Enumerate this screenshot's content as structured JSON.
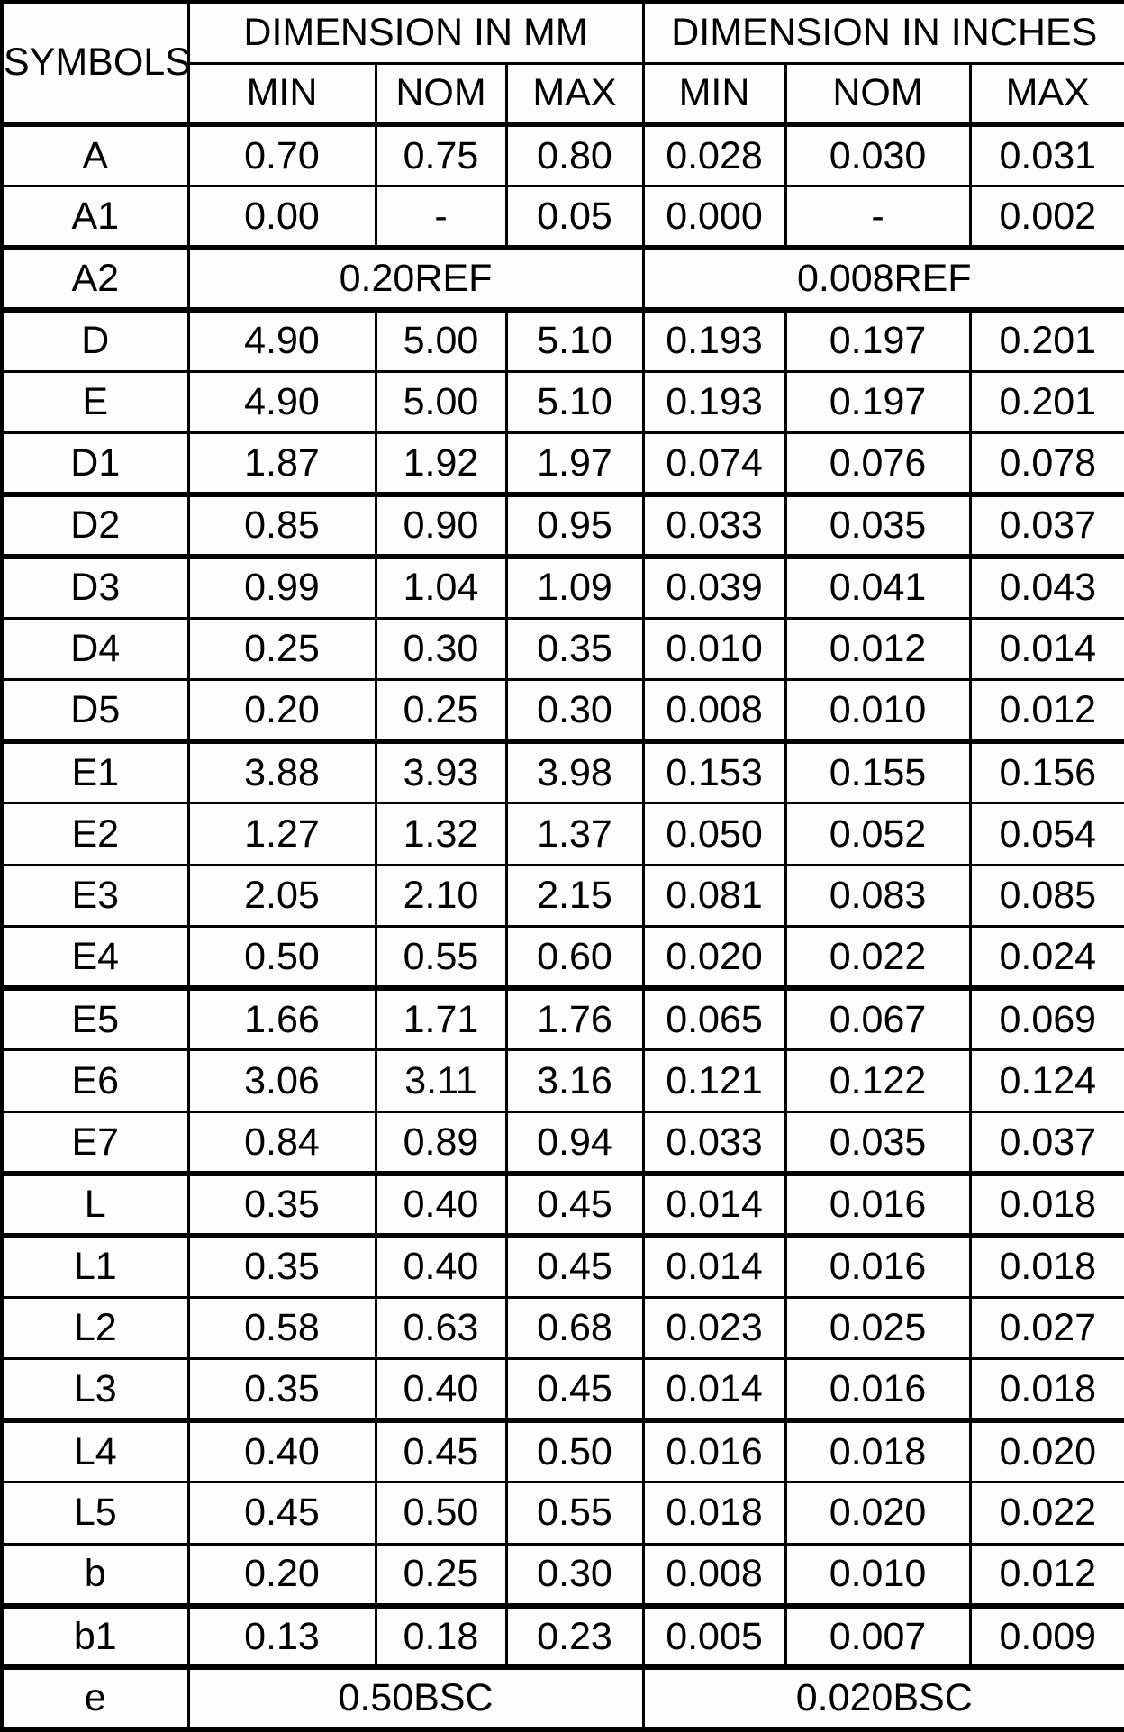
{
  "table": {
    "symbols_header": "SYMBOLS",
    "group_headers": [
      "DIMENSION IN MM",
      "DIMENSION IN INCHES"
    ],
    "sub_headers": [
      "MIN",
      "NOM",
      "MAX",
      "MIN",
      "NOM",
      "MAX"
    ],
    "rows": [
      {
        "symbol": "A",
        "mm": [
          "0.70",
          "0.75",
          "0.80"
        ],
        "inches": [
          "0.028",
          "0.030",
          "0.031"
        ]
      },
      {
        "symbol": "A1",
        "mm": [
          "0.00",
          "-",
          "0.05"
        ],
        "inches": [
          "0.000",
          "-",
          "0.002"
        ]
      },
      {
        "symbol": "A2",
        "mm_span": "0.20REF",
        "inches_span": "0.008REF"
      },
      {
        "symbol": "D",
        "mm": [
          "4.90",
          "5.00",
          "5.10"
        ],
        "inches": [
          "0.193",
          "0.197",
          "0.201"
        ]
      },
      {
        "symbol": "E",
        "mm": [
          "4.90",
          "5.00",
          "5.10"
        ],
        "inches": [
          "0.193",
          "0.197",
          "0.201"
        ]
      },
      {
        "symbol": "D1",
        "mm": [
          "1.87",
          "1.92",
          "1.97"
        ],
        "inches": [
          "0.074",
          "0.076",
          "0.078"
        ]
      },
      {
        "symbol": "D2",
        "mm": [
          "0.85",
          "0.90",
          "0.95"
        ],
        "inches": [
          "0.033",
          "0.035",
          "0.037"
        ]
      },
      {
        "symbol": "D3",
        "mm": [
          "0.99",
          "1.04",
          "1.09"
        ],
        "inches": [
          "0.039",
          "0.041",
          "0.043"
        ]
      },
      {
        "symbol": "D4",
        "mm": [
          "0.25",
          "0.30",
          "0.35"
        ],
        "inches": [
          "0.010",
          "0.012",
          "0.014"
        ]
      },
      {
        "symbol": "D5",
        "mm": [
          "0.20",
          "0.25",
          "0.30"
        ],
        "inches": [
          "0.008",
          "0.010",
          "0.012"
        ]
      },
      {
        "symbol": "E1",
        "mm": [
          "3.88",
          "3.93",
          "3.98"
        ],
        "inches": [
          "0.153",
          "0.155",
          "0.156"
        ]
      },
      {
        "symbol": "E2",
        "mm": [
          "1.27",
          "1.32",
          "1.37"
        ],
        "inches": [
          "0.050",
          "0.052",
          "0.054"
        ]
      },
      {
        "symbol": "E3",
        "mm": [
          "2.05",
          "2.10",
          "2.15"
        ],
        "inches": [
          "0.081",
          "0.083",
          "0.085"
        ]
      },
      {
        "symbol": "E4",
        "mm": [
          "0.50",
          "0.55",
          "0.60"
        ],
        "inches": [
          "0.020",
          "0.022",
          "0.024"
        ]
      },
      {
        "symbol": "E5",
        "mm": [
          "1.66",
          "1.71",
          "1.76"
        ],
        "inches": [
          "0.065",
          "0.067",
          "0.069"
        ]
      },
      {
        "symbol": "E6",
        "mm": [
          "3.06",
          "3.11",
          "3.16"
        ],
        "inches": [
          "0.121",
          "0.122",
          "0.124"
        ]
      },
      {
        "symbol": "E7",
        "mm": [
          "0.84",
          "0.89",
          "0.94"
        ],
        "inches": [
          "0.033",
          "0.035",
          "0.037"
        ]
      },
      {
        "symbol": "L",
        "mm": [
          "0.35",
          "0.40",
          "0.45"
        ],
        "inches": [
          "0.014",
          "0.016",
          "0.018"
        ]
      },
      {
        "symbol": "L1",
        "mm": [
          "0.35",
          "0.40",
          "0.45"
        ],
        "inches": [
          "0.014",
          "0.016",
          "0.018"
        ]
      },
      {
        "symbol": "L2",
        "mm": [
          "0.58",
          "0.63",
          "0.68"
        ],
        "inches": [
          "0.023",
          "0.025",
          "0.027"
        ]
      },
      {
        "symbol": "L3",
        "mm": [
          "0.35",
          "0.40",
          "0.45"
        ],
        "inches": [
          "0.014",
          "0.016",
          "0.018"
        ]
      },
      {
        "symbol": "L4",
        "mm": [
          "0.40",
          "0.45",
          "0.50"
        ],
        "inches": [
          "0.016",
          "0.018",
          "0.020"
        ]
      },
      {
        "symbol": "L5",
        "mm": [
          "0.45",
          "0.50",
          "0.55"
        ],
        "inches": [
          "0.018",
          "0.020",
          "0.022"
        ]
      },
      {
        "symbol": "b",
        "mm": [
          "0.20",
          "0.25",
          "0.30"
        ],
        "inches": [
          "0.008",
          "0.010",
          "0.012"
        ]
      },
      {
        "symbol": "b1",
        "mm": [
          "0.13",
          "0.18",
          "0.23"
        ],
        "inches": [
          "0.005",
          "0.007",
          "0.009"
        ]
      },
      {
        "symbol": "e",
        "mm_span": "0.50BSC",
        "inches_span": "0.020BSC"
      }
    ]
  }
}
